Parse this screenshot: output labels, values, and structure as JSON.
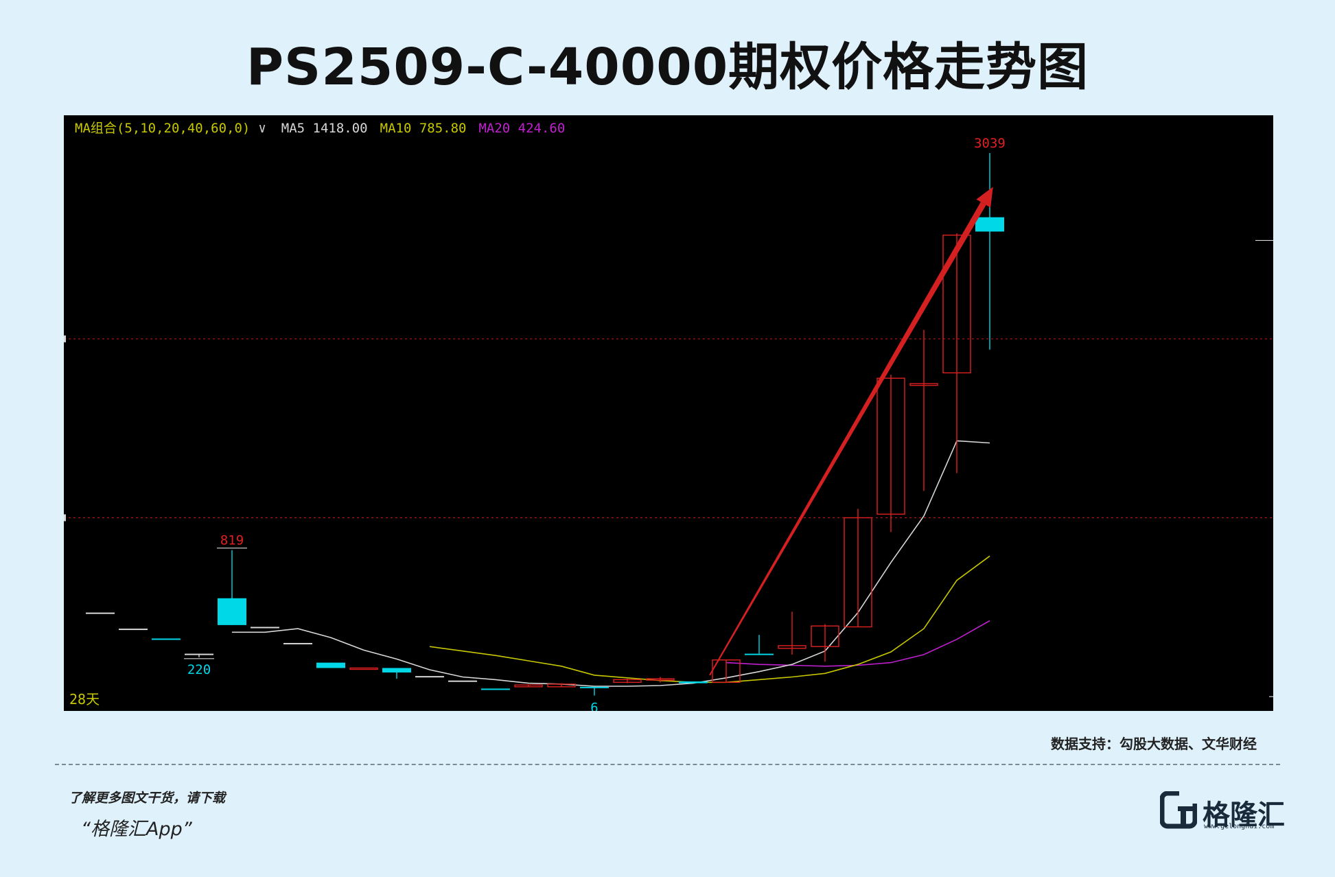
{
  "title": "PS2509-C-40000期权价格走势图",
  "legend": {
    "combo": "MA组合(5,10,20,40,60,0)",
    "chevron": "∨",
    "ma5": "MA5 1418.00",
    "ma10": "MA10 785.80",
    "ma20": "MA20 424.60"
  },
  "days_label": "28天",
  "source": "数据支持：勾股大数据、文华财经",
  "promo": {
    "line1": "了解更多图文干货，请下载",
    "line2": "“格隆汇App”"
  },
  "logo": {
    "name": "格隆汇",
    "url": "www.gelonghui.com"
  },
  "colors": {
    "up": "#e02020",
    "down": "#00d8e8",
    "flat": "#d8d8d8",
    "ma5": "#d8d8d8",
    "ma10": "#c8c800",
    "ma20": "#c020d0",
    "grid": "#b01818",
    "arrow": "#d42020"
  },
  "chart_data": {
    "type": "candlestick",
    "x": [
      1,
      2,
      3,
      4,
      5,
      6,
      7,
      8,
      9,
      10,
      11,
      12,
      13,
      14,
      15,
      16,
      17,
      18,
      19,
      20,
      21,
      22,
      23,
      24,
      25,
      26,
      27,
      28
    ],
    "candles": [
      {
        "o": 470,
        "h": 470,
        "l": 470,
        "c": 470,
        "dir": "flat"
      },
      {
        "o": 380,
        "h": 380,
        "l": 380,
        "c": 380,
        "dir": "flat"
      },
      {
        "o": 325,
        "h": 325,
        "l": 325,
        "c": 325,
        "dir": "down"
      },
      {
        "o": 240,
        "h": 240,
        "l": 220,
        "c": 240,
        "dir": "flat"
      },
      {
        "o": 550,
        "h": 819,
        "l": 400,
        "c": 400,
        "dir": "down"
      },
      {
        "o": 390,
        "h": 390,
        "l": 390,
        "c": 390,
        "dir": "flat"
      },
      {
        "o": 300,
        "h": 300,
        "l": 300,
        "c": 300,
        "dir": "flat"
      },
      {
        "o": 190,
        "h": 190,
        "l": 160,
        "c": 160,
        "dir": "down"
      },
      {
        "o": 160,
        "h": 160,
        "l": 160,
        "c": 160,
        "dir": "up"
      },
      {
        "o": 160,
        "h": 160,
        "l": 100,
        "c": 135,
        "dir": "down"
      },
      {
        "o": 115,
        "h": 115,
        "l": 115,
        "c": 115,
        "dir": "flat"
      },
      {
        "o": 90,
        "h": 90,
        "l": 90,
        "c": 90,
        "dir": "flat"
      },
      {
        "o": 45,
        "h": 45,
        "l": 45,
        "c": 45,
        "dir": "down"
      },
      {
        "o": 55,
        "h": 65,
        "l": 55,
        "c": 65,
        "dir": "up"
      },
      {
        "o": 55,
        "h": 75,
        "l": 55,
        "c": 70,
        "dir": "up"
      },
      {
        "o": 55,
        "h": 55,
        "l": 6,
        "c": 55,
        "dir": "down"
      },
      {
        "o": 80,
        "h": 100,
        "l": 75,
        "c": 95,
        "dir": "up"
      },
      {
        "o": 95,
        "h": 110,
        "l": 80,
        "c": 100,
        "dir": "up"
      },
      {
        "o": 85,
        "h": 85,
        "l": 75,
        "c": 75,
        "dir": "down"
      },
      {
        "o": 80,
        "h": 205,
        "l": 80,
        "c": 205,
        "dir": "up"
      },
      {
        "o": 240,
        "h": 345,
        "l": 240,
        "c": 240,
        "dir": "down"
      },
      {
        "o": 270,
        "h": 475,
        "l": 235,
        "c": 285,
        "dir": "up"
      },
      {
        "o": 280,
        "h": 405,
        "l": 195,
        "c": 395,
        "dir": "up"
      },
      {
        "o": 390,
        "h": 1050,
        "l": 390,
        "c": 1000,
        "dir": "up"
      },
      {
        "o": 1020,
        "h": 1800,
        "l": 920,
        "c": 1780,
        "dir": "up"
      },
      {
        "o": 1750,
        "h": 2050,
        "l": 1150,
        "c": 1740,
        "dir": "up"
      },
      {
        "o": 1810,
        "h": 2590,
        "l": 1250,
        "c": 2580,
        "dir": "up"
      },
      {
        "o": 2680,
        "h": 3039,
        "l": 1940,
        "c": 2600,
        "dir": "down"
      }
    ],
    "ma5": [
      null,
      null,
      null,
      null,
      360,
      360,
      380,
      330,
      260,
      210,
      150,
      110,
      95,
      75,
      70,
      58,
      58,
      62,
      75,
      105,
      140,
      180,
      255,
      470,
      750,
      1010,
      1430,
      1418
    ],
    "ma10": [
      null,
      null,
      null,
      null,
      null,
      null,
      null,
      null,
      null,
      null,
      280,
      255,
      230,
      200,
      170,
      120,
      105,
      90,
      80,
      80,
      95,
      110,
      130,
      180,
      250,
      380,
      650,
      785.8
    ],
    "ma20": [
      null,
      null,
      null,
      null,
      null,
      null,
      null,
      null,
      null,
      null,
      null,
      null,
      null,
      null,
      null,
      null,
      null,
      null,
      null,
      190,
      180,
      175,
      170,
      175,
      190,
      235,
      320,
      424.6
    ],
    "annotations": [
      {
        "label": "3039",
        "index": 27,
        "value": 3039,
        "kind": "high"
      },
      {
        "label": "819",
        "index": 4,
        "value": 819,
        "kind": "high"
      },
      {
        "label": "220",
        "index": 3,
        "value": 220,
        "kind": "low"
      },
      {
        "label": "6",
        "index": 15,
        "value": 6,
        "kind": "low"
      }
    ],
    "arrow": {
      "from": {
        "index": 18.5,
        "value": 120
      },
      "to": {
        "index": 27.1,
        "value": 2850
      }
    },
    "ylim": [
      -80,
      3250
    ],
    "grid_values": [
      1000,
      2000
    ]
  }
}
